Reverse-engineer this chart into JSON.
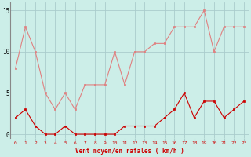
{
  "hours": [
    0,
    1,
    2,
    3,
    4,
    5,
    6,
    7,
    8,
    9,
    10,
    11,
    12,
    13,
    14,
    15,
    16,
    17,
    18,
    19,
    20,
    21,
    22,
    23
  ],
  "wind_avg": [
    2,
    3,
    1,
    0,
    0,
    1,
    0,
    0,
    0,
    0,
    0,
    1,
    1,
    1,
    1,
    2,
    3,
    5,
    2,
    4,
    4,
    2,
    3,
    4
  ],
  "wind_gust": [
    8,
    13,
    10,
    5,
    3,
    5,
    3,
    6,
    6,
    6,
    10,
    6,
    10,
    10,
    11,
    11,
    13,
    13,
    13,
    15,
    10,
    13,
    13,
    13
  ],
  "color_avg": "#cc0000",
  "color_gust": "#e08080",
  "bg_color": "#cceee8",
  "grid_color": "#aacccc",
  "xlabel": "Vent moyen/en rafales ( km/h )",
  "ylabel_ticks": [
    0,
    5,
    10,
    15
  ],
  "ylim": [
    -0.5,
    16
  ],
  "xlim": [
    -0.5,
    23.5
  ]
}
